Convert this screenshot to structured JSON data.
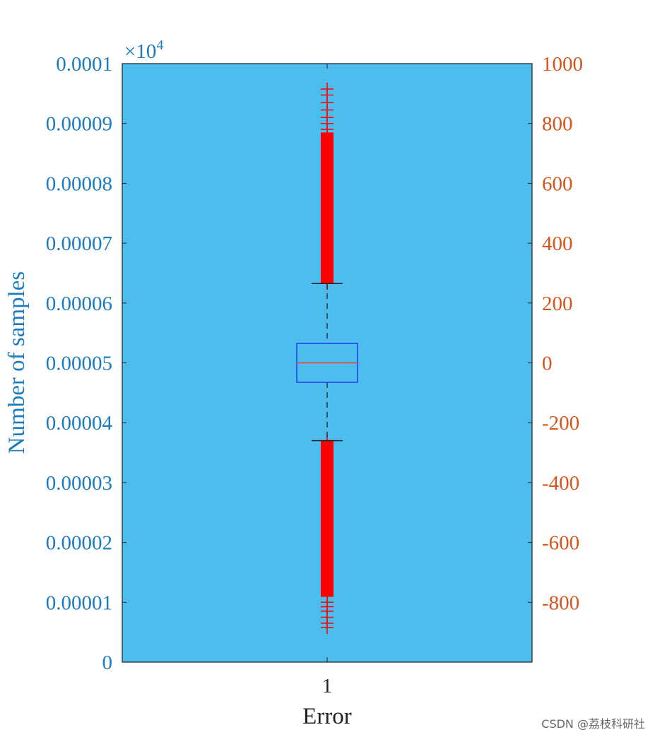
{
  "chart_data": {
    "type": "boxplot",
    "xlabel": "Error",
    "ylabel": "Number of samples",
    "categories": [
      "1"
    ],
    "left_axis": {
      "range": [
        0,
        0.0001
      ],
      "ticks": [
        0,
        1e-05,
        2e-05,
        3e-05,
        4e-05,
        5e-05,
        6e-05,
        7e-05,
        8e-05,
        9e-05,
        0.0001
      ],
      "tick_labels": [
        "0",
        "0.00001",
        "0.00002",
        "0.00003",
        "0.00004",
        "0.00005",
        "0.00006",
        "0.00007",
        "0.00008",
        "0.00009",
        "0.0001"
      ],
      "exponent_label": "×10",
      "exponent_power": "4",
      "color": "#1a7bbf"
    },
    "right_axis": {
      "range": [
        -1000,
        1000
      ],
      "ticks": [
        -800,
        -600,
        -400,
        -200,
        0,
        200,
        400,
        600,
        800,
        1000
      ],
      "tick_labels": [
        "-800",
        "-600",
        "-400",
        "-200",
        "0",
        "200",
        "400",
        "600",
        "800",
        "1000"
      ],
      "color": "#d9541a"
    },
    "box": {
      "median": 0,
      "q1": -65,
      "q3": 65,
      "whisker_low": -260,
      "whisker_high": 265
    },
    "outliers_high_range": [
      265,
      915
    ],
    "outliers_low_range": [
      -885,
      -260
    ],
    "outlier_samples_high": [
      265,
      280,
      295,
      310,
      325,
      340,
      355,
      370,
      385,
      400,
      415,
      430,
      445,
      460,
      475,
      490,
      505,
      520,
      535,
      550,
      565,
      580,
      595,
      610,
      625,
      640,
      650,
      665,
      675,
      690,
      700,
      710,
      720,
      730,
      740,
      750,
      765,
      780,
      800,
      820,
      845,
      870,
      895,
      915
    ],
    "outlier_samples_low": [
      -260,
      -275,
      -290,
      -305,
      -320,
      -335,
      -350,
      -365,
      -380,
      -395,
      -410,
      -425,
      -440,
      -455,
      -470,
      -485,
      -500,
      -515,
      -530,
      -545,
      -560,
      -575,
      -590,
      -605,
      -620,
      -640,
      -660,
      -675,
      -690,
      -705,
      -720,
      -740,
      -760,
      -780,
      -800,
      -815,
      -830,
      -850,
      -870,
      -885
    ],
    "colors": {
      "plot_background": "#4dbdee",
      "box": "#1f3dff",
      "median": "#ff3b1f",
      "outlier": "#ff0000",
      "whisker": "#222222"
    },
    "grid": false
  },
  "watermark": "CSDN @荔枝科研社"
}
